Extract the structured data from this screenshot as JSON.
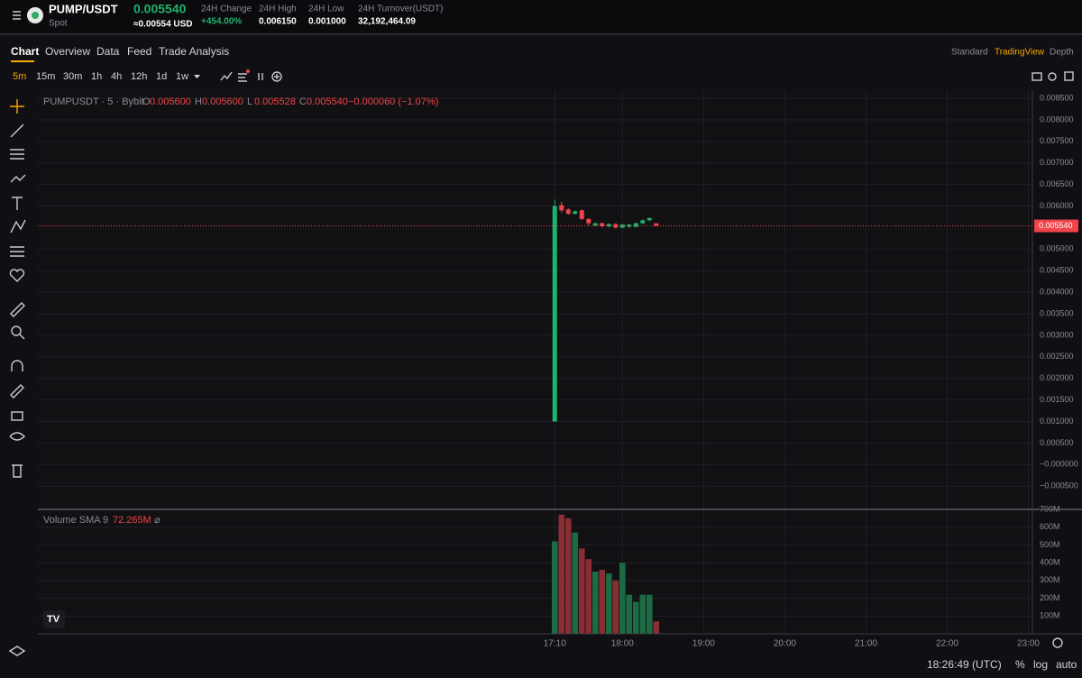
{
  "header": {
    "title": "PUMP/USDT",
    "market": "Spot",
    "price": "0.005540",
    "price_usd": "≈0.00554 USD",
    "stats": [
      {
        "label": "24H Change",
        "value": "+454.00%"
      },
      {
        "label": "24H High",
        "value": "0.006150"
      },
      {
        "label": "24H Low",
        "value": "0.001000"
      },
      {
        "label": "24H Turnover(USDT)",
        "value": "32,192,464.09"
      }
    ]
  },
  "tabs": [
    "Chart",
    "Overview",
    "Data",
    "Feed",
    "Trade Analysis"
  ],
  "views": [
    "Standard",
    "TradingView",
    "Depth"
  ],
  "intervals": [
    "5m",
    "15m",
    "30m",
    "1h",
    "4h",
    "12h",
    "1d",
    "1w"
  ],
  "chart_data": {
    "type": "candlestick",
    "symbol": "PUMPUSDT · 5 · Bybit",
    "ohlc_legend": [
      {
        "key": "O",
        "value": "0.005600"
      },
      {
        "key": "H",
        "value": "0.005600"
      },
      {
        "key": "L",
        "value": "0.005528"
      },
      {
        "key": "C",
        "value": "0.005540"
      }
    ],
    "change": "−0.000060 (−1.07%)",
    "up_color": "#20b26c",
    "down_color": "#ef454a",
    "x": [
      "17:10",
      "17:15",
      "17:20",
      "17:25",
      "17:30",
      "17:35",
      "17:40",
      "17:45",
      "17:50",
      "17:55",
      "18:00",
      "18:05",
      "18:10",
      "18:15",
      "18:20",
      "18:25"
    ],
    "open": [
      0.001,
      0.00602,
      0.00592,
      0.00582,
      0.0059,
      0.0057,
      0.00555,
      0.0056,
      0.00553,
      0.00558,
      0.0055,
      0.00552,
      0.00552,
      0.0056,
      0.00567,
      0.0056
    ],
    "high": [
      0.00615,
      0.0061,
      0.00595,
      0.0059,
      0.00592,
      0.00572,
      0.00562,
      0.00562,
      0.0056,
      0.0056,
      0.00558,
      0.00559,
      0.00562,
      0.00569,
      0.00574,
      0.0056
    ],
    "low": [
      0.001,
      0.00585,
      0.0058,
      0.0058,
      0.00568,
      0.00555,
      0.00552,
      0.0055,
      0.0055,
      0.00548,
      0.00548,
      0.0055,
      0.0055,
      0.00558,
      0.00565,
      0.005528
    ],
    "close": [
      0.006,
      0.0059,
      0.00582,
      0.00588,
      0.0057,
      0.0056,
      0.0056,
      0.00553,
      0.00558,
      0.0055,
      0.00557,
      0.00557,
      0.0056,
      0.00567,
      0.00572,
      0.00554
    ],
    "volume": [
      520000000,
      670000000,
      650000000,
      570000000,
      480000000,
      420000000,
      350000000,
      360000000,
      340000000,
      300000000,
      400000000,
      220000000,
      180000000,
      220000000,
      220000000,
      70000000
    ],
    "ylim": [
      -0.00104,
      0.00869
    ],
    "yticks": [
      {
        "value": 0.0085,
        "label": "0.008500"
      },
      {
        "value": 0.008,
        "label": "0.008000"
      },
      {
        "value": 0.0075,
        "label": "0.007500"
      },
      {
        "value": 0.007,
        "label": "0.007000"
      },
      {
        "value": 0.0065,
        "label": "0.006500"
      },
      {
        "value": 0.006,
        "label": "0.006000"
      },
      {
        "value": 0.005,
        "label": "0.005000"
      },
      {
        "value": 0.0045,
        "label": "0.004500"
      },
      {
        "value": 0.004,
        "label": "0.004000"
      },
      {
        "value": 0.0035,
        "label": "0.003500"
      },
      {
        "value": 0.003,
        "label": "0.003000"
      },
      {
        "value": 0.0025,
        "label": "0.002500"
      },
      {
        "value": 0.002,
        "label": "0.002000"
      },
      {
        "value": 0.0015,
        "label": "0.001500"
      },
      {
        "value": 0.001,
        "label": "0.001000"
      },
      {
        "value": 0.0005,
        "label": "0.000500"
      },
      {
        "value": 0,
        "label": "−0.000000"
      },
      {
        "value": -0.0005,
        "label": "−0.000500"
      }
    ],
    "volume_title": "Volume SMA 9",
    "volume_sma": "72.265M",
    "volume_symbol": "⌀",
    "vlim": [
      0,
      700000000
    ],
    "vticks": [
      {
        "value": 100000000,
        "label": "100M"
      },
      {
        "value": 200000000,
        "label": "200M"
      },
      {
        "value": 300000000,
        "label": "300M"
      },
      {
        "value": 400000000,
        "label": "400M"
      },
      {
        "value": 500000000,
        "label": "500M"
      },
      {
        "value": 600000000,
        "label": "600M"
      },
      {
        "value": 700000000,
        "label": "700M"
      }
    ],
    "xlim": [
      "10:48",
      "23:03"
    ],
    "xticks": [
      "17:10",
      "18:00",
      "19:00",
      "20:00",
      "21:00",
      "22:00",
      "23:00"
    ],
    "grid": true
  },
  "footer": {
    "clock": "18:26:49 (UTC)",
    "percent": "%",
    "log": "log",
    "auto": "auto"
  }
}
